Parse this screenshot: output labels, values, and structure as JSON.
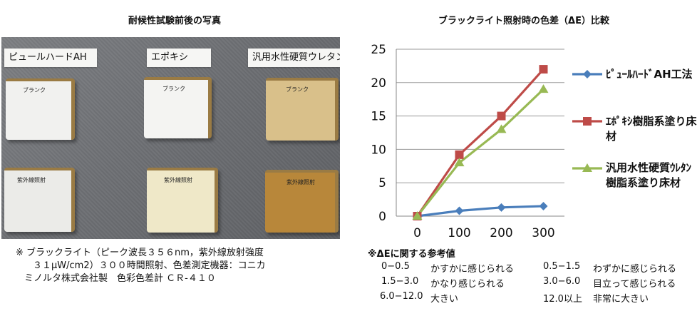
{
  "photo": {
    "title": "耐候性試験前後の写真",
    "column_labels": [
      "ピュールハードAH",
      "エポキシ",
      "汎用水性硬質ウレタン"
    ],
    "before_tag": "ブランク",
    "after_tag": "紫外線照射",
    "colors": {
      "col1_before": "#f1f1ef",
      "col1_after": "#ebebe8",
      "col2_before": "#f4f4f2",
      "col2_after": "#efe8c8",
      "col3_before": "#d9c08a",
      "col3_after": "#b8873a",
      "side": "#9a7b44"
    }
  },
  "caption": {
    "line1": "※ ブラックライト（ピーク波長３５６nm，紫外線放射強度",
    "line2": "３１μW/cm2）３００時間照射、色差測定機器：コニカ",
    "line3": "ミノルタ株式会社製　色彩色差計 ＣＲ-４１０"
  },
  "chart_data": {
    "type": "line",
    "title": "ブラックライト照射時の色差（ΔE）比較",
    "x": [
      0,
      100,
      200,
      300
    ],
    "ylim": [
      0,
      25
    ],
    "yticks": [
      0,
      5,
      10,
      15,
      20,
      25
    ],
    "grid": "horizontal",
    "legend_position": "right",
    "series": [
      {
        "name": "ﾋﾟｭｰﾙﾊｰﾄﾞAH工法",
        "color": "#4a7ebb",
        "marker": "diamond",
        "values": [
          0,
          0.8,
          1.3,
          1.5
        ]
      },
      {
        "name": "ｴﾎﾟｷｼ樹脂系塗り床材",
        "color": "#be4b48",
        "marker": "square",
        "values": [
          0,
          9.2,
          15,
          22
        ]
      },
      {
        "name": "汎用水性硬質ｳﾚﾀﾝ樹脂系塗り床材",
        "color": "#98b954",
        "marker": "triangle",
        "values": [
          0,
          8,
          13,
          19
        ]
      }
    ]
  },
  "reference": {
    "title": "※ΔEに関する参考値",
    "rows": [
      {
        "range": "0−0.5",
        "desc": "かすかに感じられる",
        "range2": "0.5−1.5",
        "desc2": "わずかに感じられる"
      },
      {
        "range": "1.5−3.0",
        "desc": "かなり感じられる",
        "range2": "3.0−6.0",
        "desc2": "目立って感じられる"
      },
      {
        "range": "6.0−12.0",
        "desc": "大きい",
        "range2": "12.0以上",
        "desc2": "非常に大きい"
      }
    ]
  }
}
